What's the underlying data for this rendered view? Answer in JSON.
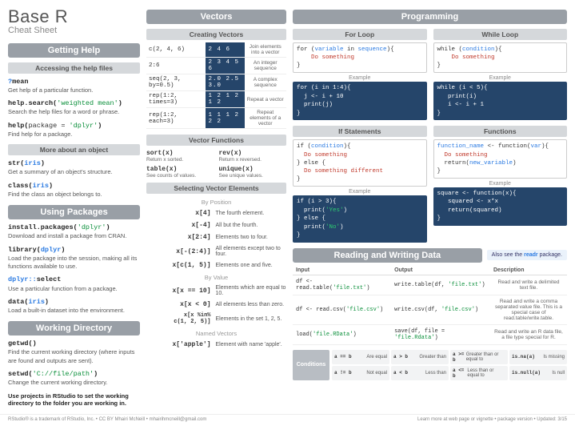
{
  "header": {
    "title": "Base R",
    "subtitle": "Cheat Sheet"
  },
  "getting_help": {
    "title": "Getting Help",
    "sub1": "Accessing the help files",
    "items1": [
      {
        "code": "?mean",
        "desc": "Get help of a particular function."
      },
      {
        "code": "help.search('weighted mean')",
        "desc": "Search the help files for a word or phrase."
      },
      {
        "code": "help(package = 'dplyr')",
        "desc": "Find help for a package."
      }
    ],
    "sub2": "More about an object",
    "items2": [
      {
        "code": "str(iris)",
        "desc": "Get a summary of an object's structure."
      },
      {
        "code": "class(iris)",
        "desc": "Find the class an object belongs to."
      }
    ]
  },
  "packages": {
    "title": "Using Packages",
    "items": [
      {
        "code": "install.packages('dplyr')",
        "desc": "Download and install a package from CRAN."
      },
      {
        "code": "library(dplyr)",
        "desc": "Load the package into the session, making all its functions available to use."
      },
      {
        "code": "dplyr::select",
        "desc": "Use a particular function from a package."
      },
      {
        "code": "data(iris)",
        "desc": "Load a built-in dataset into the environment."
      }
    ]
  },
  "wd": {
    "title": "Working Directory",
    "items": [
      {
        "code": "getwd()",
        "desc": "Find the current working directory (where inputs are found and outputs are sent)."
      },
      {
        "code": "setwd('C://file/path')",
        "desc": "Change the current working directory."
      }
    ],
    "note": "Use projects in RStudio to set the working directory to the folder you are working in."
  },
  "vectors": {
    "title": "Vectors",
    "create_title": "Creating Vectors",
    "create": [
      {
        "in": "c(2, 4, 6)",
        "out": "2 4 6",
        "d": "Join elements into a vector"
      },
      {
        "in": "2:6",
        "out": "2 3 4 5 6",
        "d": "An integer sequence"
      },
      {
        "in": "seq(2, 3, by=0.5)",
        "out": "2.0 2.5 3.0",
        "d": "A complex sequence"
      },
      {
        "in": "rep(1:2, times=3)",
        "out": "1 2 1 2 1 2",
        "d": "Repeat a vector"
      },
      {
        "in": "rep(1:2, each=3)",
        "out": "1 1 1 2 2 2",
        "d": "Repeat elements of a vector"
      }
    ],
    "func_title": "Vector Functions",
    "funcs": [
      {
        "l": "sort(x)",
        "ld": "Return x sorted.",
        "r": "rev(x)",
        "rd": "Return x reversed."
      },
      {
        "l": "table(x)",
        "ld": "See counts of values.",
        "r": "unique(x)",
        "rd": "See unique values."
      }
    ],
    "sel_title": "Selecting Vector Elements",
    "by_pos": "By Position",
    "pos": [
      {
        "c": "x[4]",
        "d": "The fourth element."
      },
      {
        "c": "x[-4]",
        "d": "All but the fourth."
      },
      {
        "c": "x[2:4]",
        "d": "Elements two to four."
      },
      {
        "c": "x[-(2:4)]",
        "d": "All elements except two to four."
      },
      {
        "c": "x[c(1, 5)]",
        "d": "Elements one and five."
      }
    ],
    "by_val": "By Value",
    "val": [
      {
        "c": "x[x == 10]",
        "d": "Elements which are equal to 10."
      },
      {
        "c": "x[x < 0]",
        "d": "All elements less than zero."
      },
      {
        "c": "x[x %in% c(1, 2, 5)]",
        "d": "Elements in the set 1, 2, 5."
      }
    ],
    "by_name": "Named Vectors",
    "named": [
      {
        "c": "x['apple']",
        "d": "Element with name 'apple'."
      }
    ]
  },
  "programming": {
    "title": "Programming",
    "for": {
      "title": "For Loop",
      "code": "for (variable in sequence){\n    Do something\n}",
      "ex_lbl": "Example",
      "ex": "for (i in 1:4){\n  j <- i + 10\n  print(j)\n}"
    },
    "while": {
      "title": "While Loop",
      "code": "while (condition){\n    Do something\n}",
      "ex_lbl": "Example",
      "ex": "while (i < 5){\n   print(i)\n   i <- i + 1\n}"
    },
    "if": {
      "title": "If Statements",
      "code": "if (condition){\n  Do something\n} else {\n  Do something different\n}",
      "ex_lbl": "Example",
      "ex": "if (i > 3){\n  print('Yes')\n} else {\n  print('No')\n}"
    },
    "func": {
      "title": "Functions",
      "code": "function_name <- function(var){\n  Do something\n  return(new_variable)\n}",
      "ex_lbl": "Example",
      "ex": "square <- function(x){\n   squared <- x*x\n   return(squared)\n}"
    }
  },
  "rw": {
    "title": "Reading and Writing Data",
    "note_prefix": "Also see the ",
    "note_pkg": "readr",
    "note_suffix": " package.",
    "head": {
      "in": "Input",
      "out": "Output",
      "d": "Description"
    },
    "rows": [
      {
        "in": "df <- read.table('file.txt')",
        "out": "write.table(df, 'file.txt')",
        "d": "Read and write a delimited text file."
      },
      {
        "in": "df <- read.csv('file.csv')",
        "out": "write.csv(df, 'file.csv')",
        "d": "Read and write a comma separated value file. This is a special case of read.table/write.table."
      },
      {
        "in": "load('file.RData')",
        "out": "save(df, file = 'file.Rdata')",
        "d": "Read and write an R data file, a file type special for R."
      }
    ]
  },
  "cond": {
    "label": "Conditions",
    "cells": [
      {
        "op": "a == b",
        "d": "Are equal"
      },
      {
        "op": "a > b",
        "d": "Greater than"
      },
      {
        "op": "a >= b",
        "d": "Greater than or equal to"
      },
      {
        "op": "is.na(a)",
        "d": "Is missing"
      },
      {
        "op": "a != b",
        "d": "Not equal"
      },
      {
        "op": "a < b",
        "d": "Less than"
      },
      {
        "op": "a <= b",
        "d": "Less than or equal to"
      },
      {
        "op": "is.null(a)",
        "d": "Is null"
      }
    ]
  },
  "footer": {
    "left": "RStudio® is a trademark of RStudio, Inc. • CC BY Mhairi McNeill • mhairihmcneill@gmail.com",
    "right": "Learn more at web page or vignette • package version • Updated: 3/15"
  },
  "colors": {
    "header_gray": "#999fa6",
    "sub_gray": "#d5d8db",
    "navy": "#25456a",
    "blue": "#2a7ae2",
    "red": "#c0392b",
    "green_str": "#0a8f3a"
  }
}
